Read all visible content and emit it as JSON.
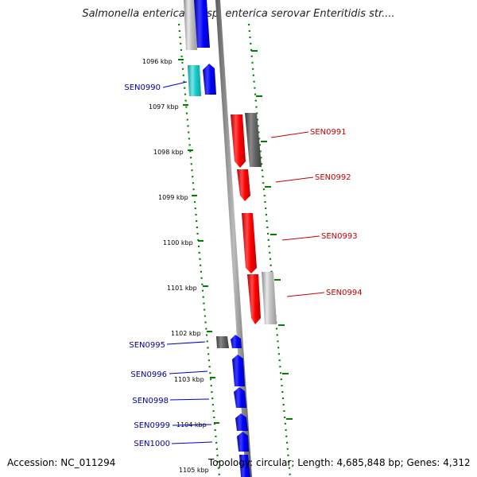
{
  "title": "Salmonella enterica subsp. enterica serovar Enteritidis str....",
  "accession": "Accession: NC_011294",
  "stats": "Topology: circular; Length: 4,685,848 bp; Genes: 4,312",
  "colors": {
    "forward_gene": "#0000ff",
    "reverse_gene": "#ff0000",
    "cyan_gene": "#19cccc",
    "grey_gene": "#666666",
    "light_grey_gene": "#bbbbbb",
    "forward_label": "#00009b",
    "reverse_label": "#c80000",
    "tick": "#008000",
    "backbone": "#808080"
  },
  "ticks": [
    {
      "label": "1096 kbp"
    },
    {
      "label": "1097 kbp"
    },
    {
      "label": "1098 kbp"
    },
    {
      "label": "1099 kbp"
    },
    {
      "label": "1100 kbp"
    },
    {
      "label": "1101 kbp"
    },
    {
      "label": "1102 kbp"
    },
    {
      "label": "1103 kbp"
    },
    {
      "label": "1104 kbp"
    },
    {
      "label": "1105 kbp"
    }
  ],
  "genes_forward": [
    "SEN0990",
    "SEN0995",
    "SEN0996",
    "SEN0998",
    "SEN0999",
    "SEN1000"
  ],
  "genes_reverse": [
    "SEN0991",
    "SEN0992",
    "SEN0993",
    "SEN0994"
  ]
}
